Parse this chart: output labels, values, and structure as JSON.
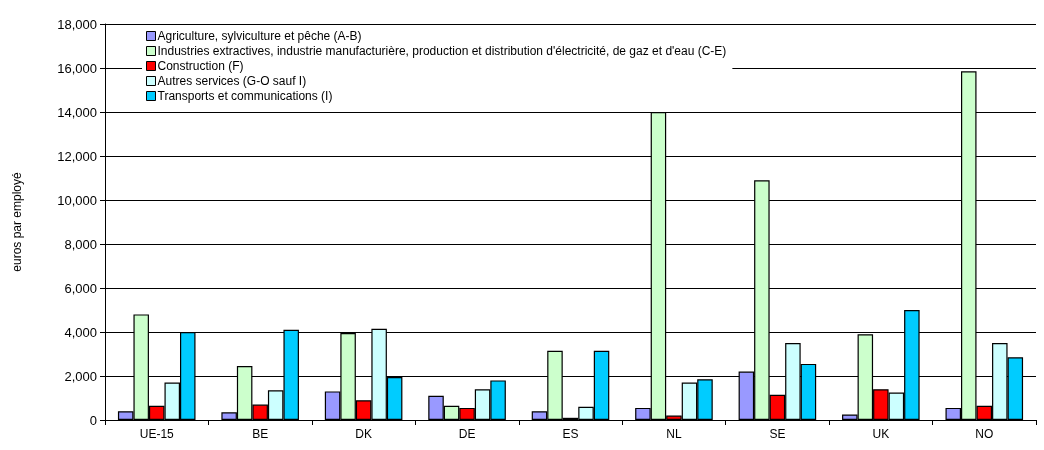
{
  "chart_data": {
    "type": "bar",
    "ylabel": "euros par employé",
    "categories": [
      "UE-15",
      "BE",
      "DK",
      "DE",
      "ES",
      "NL",
      "SE",
      "UK",
      "NO"
    ],
    "series": [
      {
        "name": "Agriculture, sylviculture et pêche (A-B)",
        "color": "#9999ff",
        "values": [
          400,
          350,
          1300,
          1100,
          400,
          550,
          2200,
          250,
          550
        ]
      },
      {
        "name": "Industries extractives, industrie manufacturière, production et distribution d'électricité, de gaz et d'eau (C-E)",
        "color": "#ccffcc",
        "values": [
          4800,
          2450,
          3950,
          650,
          3150,
          14000,
          10900,
          3900,
          15850
        ]
      },
      {
        "name": "Construction (F)",
        "color": "#ff0000",
        "values": [
          650,
          700,
          900,
          550,
          100,
          200,
          1150,
          1400,
          650
        ]
      },
      {
        "name": "Autres services (G-O sauf I)",
        "color": "#ccffff",
        "values": [
          1700,
          1350,
          4150,
          1400,
          600,
          1700,
          3500,
          1250,
          3500
        ]
      },
      {
        "name": "Transports et communications (I)",
        "color": "#00ccff",
        "values": [
          4000,
          4100,
          1950,
          1800,
          3150,
          1850,
          2550,
          5000,
          2850
        ]
      }
    ],
    "ylim": [
      0,
      18000
    ],
    "yticks": [
      0,
      {
        "value": 2000,
        "label": "2,000"
      },
      {
        "value": 4000,
        "label": "4,000"
      },
      {
        "value": 6000,
        "label": "6,000"
      },
      {
        "value": 8000,
        "label": "8,000"
      },
      {
        "value": 10000,
        "label": "10,000"
      },
      {
        "value": 12000,
        "label": "12,000"
      },
      {
        "value": 14000,
        "label": "14,000"
      },
      {
        "value": 16000,
        "label": "16,000"
      },
      {
        "value": 18000,
        "label": "18,000"
      }
    ],
    "grid": "y",
    "legend": "top left"
  }
}
